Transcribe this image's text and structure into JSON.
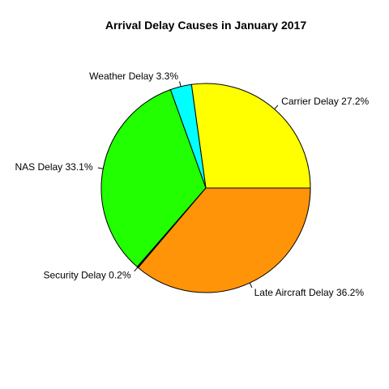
{
  "chart_data": {
    "type": "pie",
    "title": "Arrival Delay Causes in January 2017",
    "slices": [
      {
        "label": "Carrier Delay 27.2%",
        "value": 27.2,
        "color": "#ffff00"
      },
      {
        "label": "Weather Delay 3.3%",
        "value": 3.3,
        "color": "#00ffff"
      },
      {
        "label": "NAS Delay 33.1%",
        "value": 33.1,
        "color": "#22ff00"
      },
      {
        "label": "Security Delay 0.2%",
        "value": 0.2,
        "color": "#000000"
      },
      {
        "label": "Late Aircraft Delay 36.2%",
        "value": 36.2,
        "color": "#ff9408"
      }
    ],
    "start": "3 o'clock",
    "direction": "counterclockwise",
    "legend": "none"
  }
}
